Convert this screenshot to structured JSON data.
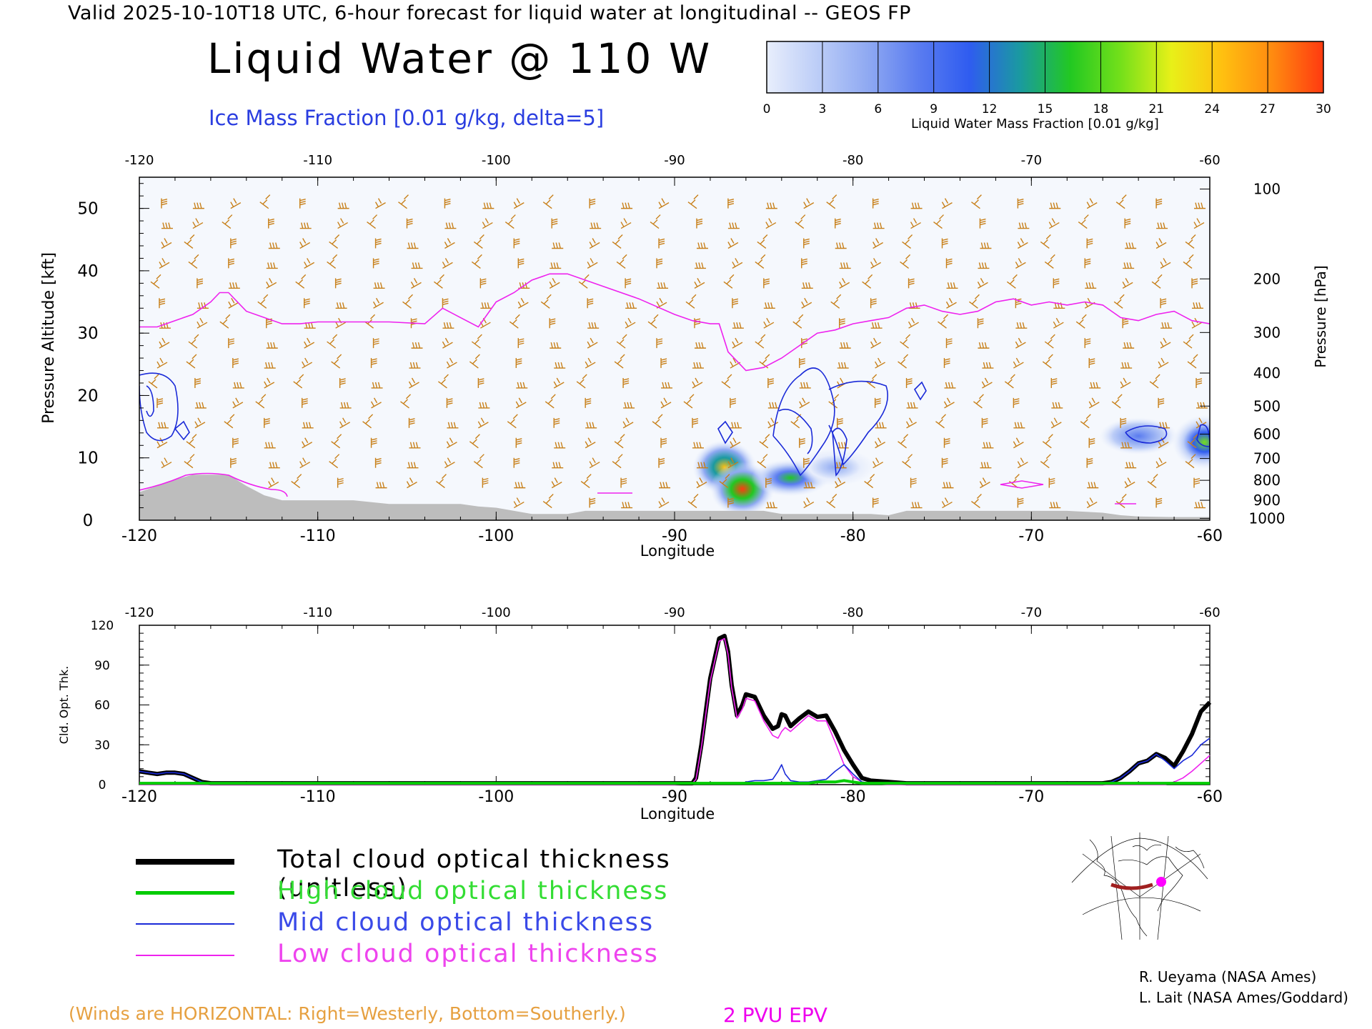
{
  "header": {
    "top_line": "Valid 2025-10-10T18 UTC, 6-hour forecast for liquid water at longitudinal -- GEOS FP",
    "title": "Liquid Water @ 110 W",
    "ice_subtitle": "Ice Mass Fraction [0.01 g/kg, delta=5]"
  },
  "colorbar": {
    "label": "Liquid Water Mass Fraction [0.01 g/kg]",
    "ticks": [
      "0",
      "3",
      "6",
      "9",
      "12",
      "15",
      "18",
      "21",
      "24",
      "27",
      "30"
    ],
    "colors": [
      "#e8eefc",
      "#bccdf7",
      "#8fa9f2",
      "#5a7cf0",
      "#2f5cf0",
      "#1a9aa0",
      "#22c822",
      "#74e01a",
      "#e8f018",
      "#ffc010",
      "#ff8a10",
      "#ff3a10"
    ]
  },
  "colors": {
    "ice_contour": "#1a2ad8",
    "epv_line": "#ee22ee",
    "wind_barbs": "#c8801a",
    "terrain": "#bdbdbd",
    "total_line": "#000000",
    "high_line": "#00cc00",
    "mid_line": "#1a2ad8",
    "low_line": "#ee22ee"
  },
  "chart_data": [
    {
      "type": "heatmap",
      "xlabel": "Longitude",
      "ylabel": "Pressure Altitude [kft]",
      "ylabel_right": "Pressure [hPa]",
      "xlim": [
        -120,
        -60
      ],
      "ylim": [
        0,
        55
      ],
      "x_ticks": [
        "-120",
        "-110",
        "-100",
        "-90",
        "-80",
        "-70",
        "-60"
      ],
      "y_ticks": [
        "0",
        "10",
        "20",
        "30",
        "40",
        "50"
      ],
      "pressure_ticks": [
        "100",
        "200",
        "300",
        "400",
        "500",
        "600",
        "700",
        "800",
        "900",
        "1000"
      ],
      "pressure_tick_kft": [
        53.1,
        38.7,
        30.1,
        23.6,
        18.3,
        13.8,
        9.9,
        6.4,
        3.2,
        0.3
      ],
      "liquid_water_blobs": [
        {
          "lon": -87.2,
          "kft": 8.5,
          "peak": 24
        },
        {
          "lon": -86.2,
          "kft": 5.0,
          "peak": 30
        },
        {
          "lon": -83.5,
          "kft": 6.8,
          "peak": 15
        },
        {
          "lon": -81.0,
          "kft": 8.5,
          "peak": 6
        },
        {
          "lon": -60.3,
          "kft": 12.5,
          "peak": 18
        },
        {
          "lon": -64.0,
          "kft": 13.5,
          "peak": 8
        }
      ],
      "epv_2pvu": {
        "lon": [
          -120,
          -119,
          -118,
          -117,
          -116,
          -115.5,
          -115,
          -114,
          -113,
          -112,
          -111,
          -110,
          -108,
          -106,
          -104,
          -103,
          -102,
          -101,
          -100,
          -99,
          -98,
          -97,
          -96,
          -94,
          -92,
          -90,
          -89,
          -88,
          -87.5,
          -87,
          -86,
          -85,
          -84,
          -83,
          -82,
          -81,
          -80,
          -79,
          -78,
          -77,
          -76,
          -75,
          -74,
          -73,
          -72,
          -71,
          -70,
          -69,
          -68,
          -67,
          -66,
          -65,
          -64,
          -63,
          -62,
          -61,
          -60
        ],
        "kft": [
          31,
          31,
          32,
          33,
          35,
          36.5,
          36.5,
          33.5,
          32.5,
          31.5,
          31.5,
          31.8,
          31.8,
          31.8,
          31.5,
          34,
          32.5,
          31,
          35,
          36.5,
          38.5,
          39.5,
          39.5,
          37.5,
          35.5,
          33,
          32,
          31.5,
          31.5,
          27,
          24,
          24.5,
          26,
          28,
          30,
          30.5,
          31.5,
          32,
          32.5,
          34,
          34.5,
          33.5,
          33,
          33.5,
          35,
          35.5,
          34.5,
          35,
          34.5,
          35,
          34.5,
          32.5,
          32,
          33,
          33.5,
          32,
          31.5
        ]
      },
      "terrain_kft": {
        "lon": [
          -120,
          -119,
          -118,
          -117,
          -116,
          -115,
          -114,
          -113,
          -112,
          -111,
          -110,
          -108,
          -106,
          -105,
          -104,
          -103,
          -102,
          -101,
          -100,
          -99,
          -98,
          -97,
          -96,
          -95,
          -94,
          -92,
          -90,
          -88,
          -86,
          -85,
          -84,
          -82,
          -80,
          -79,
          -78,
          -77,
          -76,
          -74,
          -72,
          -70,
          -68,
          -66,
          -65,
          -64,
          -62,
          -60
        ],
        "kft": [
          4.5,
          5.5,
          6.5,
          7.3,
          7.3,
          7.3,
          5.5,
          4,
          3.2,
          3.2,
          3.2,
          3.2,
          2.6,
          2.6,
          2.6,
          2.6,
          2.6,
          2.2,
          2,
          1.5,
          1,
          1,
          1,
          1.5,
          1.5,
          1.5,
          1.5,
          1.5,
          1.5,
          1.5,
          1,
          1,
          1,
          1,
          0.8,
          1.5,
          1.5,
          1.5,
          1.5,
          1.5,
          1.5,
          1.2,
          0.8,
          0.6,
          0.5,
          0.5
        ]
      },
      "wind_barb_columns_lon": [
        -119,
        -117,
        -115,
        -113,
        -111,
        -109,
        -107,
        -105,
        -103,
        -101,
        -99,
        -97,
        -95,
        -93,
        -91,
        -89,
        -87,
        -85,
        -83,
        -81,
        -79,
        -77,
        -75,
        -73,
        -71,
        -69,
        -67,
        -65,
        -63,
        -61
      ]
    },
    {
      "type": "line",
      "xlabel": "Longitude",
      "ylabel": "Cld. Opt. Thk.",
      "xlim": [
        -120,
        -60
      ],
      "ylim": [
        0,
        120
      ],
      "x_ticks": [
        "-120",
        "-110",
        "-100",
        "-90",
        "-80",
        "-70",
        "-60"
      ],
      "y_ticks": [
        "0",
        "30",
        "60",
        "90",
        "120"
      ],
      "x": [
        -120,
        -119.5,
        -119,
        -118.5,
        -118,
        -117.5,
        -117,
        -116.5,
        -116,
        -115,
        -110,
        -105,
        -100,
        -95,
        -90,
        -89,
        -88.8,
        -88.5,
        -88,
        -87.5,
        -87.2,
        -87,
        -86.8,
        -86.5,
        -86.2,
        -86,
        -85.5,
        -85,
        -84.5,
        -84.2,
        -84,
        -83.8,
        -83.5,
        -83,
        -82.5,
        -82,
        -81.5,
        -81,
        -80.5,
        -80,
        -79.5,
        -79,
        -78,
        -77,
        -76,
        -75,
        -70,
        -66,
        -65.5,
        -65,
        -64.5,
        -64,
        -63.5,
        -63,
        -62.5,
        -62,
        -61.5,
        -61,
        -60.5,
        -60
      ],
      "series": [
        {
          "name": "Total cloud optical thickness (unitless)",
          "values": [
            10,
            9,
            8,
            9,
            9,
            8,
            5,
            2,
            1,
            1,
            1,
            1,
            1,
            1,
            1,
            1,
            5,
            30,
            80,
            110,
            112,
            100,
            75,
            52,
            60,
            68,
            66,
            52,
            42,
            44,
            53,
            52,
            44,
            50,
            55,
            51,
            52,
            40,
            26,
            15,
            5,
            3,
            2,
            1,
            1,
            1,
            1,
            1,
            2,
            5,
            10,
            16,
            18,
            23,
            20,
            14,
            25,
            38,
            55,
            62
          ]
        },
        {
          "name": "High cloud optical thickness",
          "values": [
            1,
            1,
            1,
            1,
            1,
            1,
            1,
            1,
            1,
            1,
            1,
            1,
            1,
            1,
            1,
            1,
            1,
            1,
            1,
            1,
            1,
            1,
            1,
            1,
            1,
            1,
            1,
            1,
            1,
            1,
            1,
            1,
            1,
            1,
            1,
            2,
            2,
            2,
            3,
            2,
            1,
            1,
            1,
            1,
            1,
            1,
            1,
            1,
            1,
            1,
            1,
            1,
            1,
            1,
            1,
            1,
            1,
            1,
            1,
            1
          ]
        },
        {
          "name": "Mid cloud optical thickness",
          "values": [
            10,
            9,
            8,
            9,
            9,
            8,
            5,
            2,
            1,
            1,
            1,
            1,
            1,
            1,
            1,
            1,
            1,
            1,
            1,
            1,
            1,
            1,
            1,
            1,
            1,
            2,
            3,
            3,
            4,
            10,
            15,
            8,
            3,
            2,
            2,
            3,
            4,
            10,
            15,
            8,
            2,
            1,
            1,
            1,
            1,
            1,
            1,
            1,
            2,
            5,
            10,
            16,
            18,
            23,
            18,
            12,
            18,
            22,
            30,
            35
          ]
        },
        {
          "name": "Low cloud optical thickness",
          "values": [
            0,
            0,
            0,
            0,
            0,
            0,
            0,
            0,
            0,
            0,
            0,
            0,
            0,
            0,
            0,
            1,
            4,
            28,
            78,
            108,
            110,
            98,
            73,
            50,
            57,
            65,
            63,
            48,
            37,
            35,
            40,
            43,
            40,
            46,
            52,
            48,
            48,
            32,
            15,
            6,
            2,
            1,
            0,
            0,
            0,
            0,
            0,
            0,
            0,
            0,
            0,
            0,
            0,
            0,
            0,
            2,
            5,
            10,
            16,
            22
          ]
        }
      ]
    }
  ],
  "legend": [
    {
      "label": "Total cloud optical thickness (unitless)",
      "color": "#000000",
      "text_color": "#000000"
    },
    {
      "label": "High cloud optical thickness",
      "color": "#00cc00",
      "text_color": "#33dd33"
    },
    {
      "label": "Mid cloud optical thickness",
      "color": "#1a2ad8",
      "text_color": "#3a4ae8"
    },
    {
      "label": "Low cloud optical thickness",
      "color": "#ee22ee",
      "text_color": "#ee44ee"
    }
  ],
  "credits": [
    "R. Ueyama (NASA Ames)",
    "L. Lait (NASA Ames/Goddard)"
  ],
  "footer": {
    "winds_note": "(Winds are HORIZONTAL: Right=Westerly, Bottom=Southerly.)",
    "epv_label": "2 PVU EPV"
  }
}
